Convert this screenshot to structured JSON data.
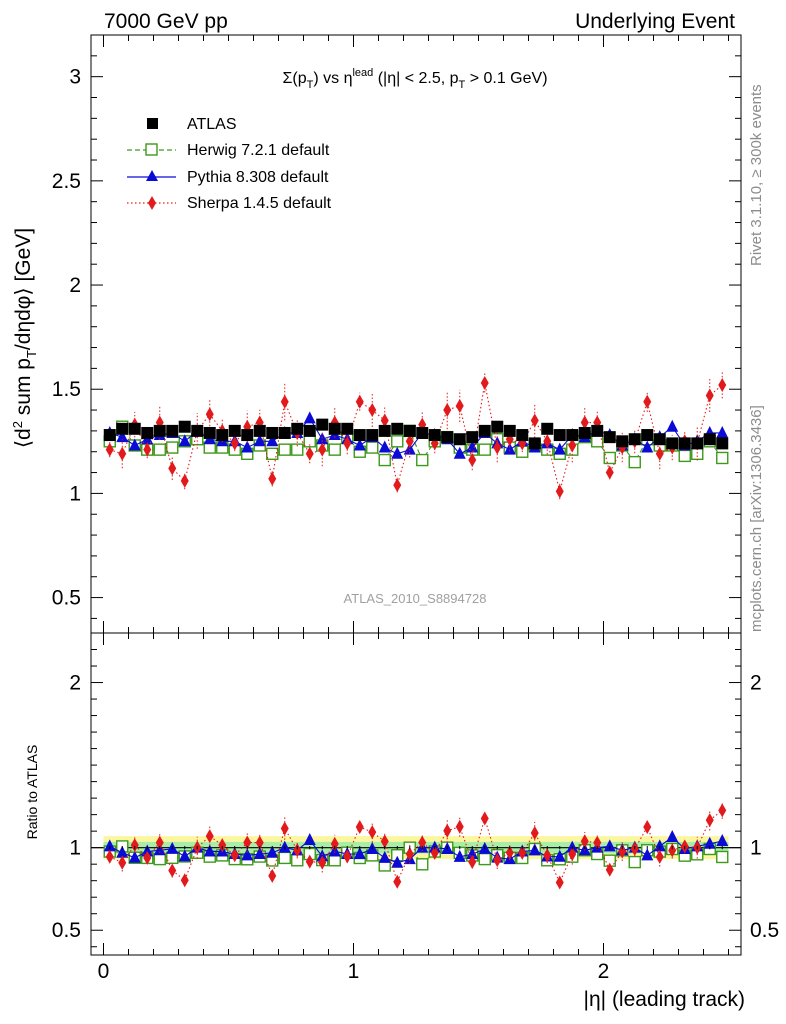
{
  "header": {
    "left": "7000 GeV pp",
    "right": "Underlying Event"
  },
  "side_labels": {
    "rivet": "Rivet 3.1.10, ≥ 300k events",
    "mcplots": "mcplots.cern.ch [arXiv:1306.3436]"
  },
  "watermark": "ATLAS_2010_S8894728",
  "chart_data": {
    "type": "scatter",
    "title_parts": {
      "main": "Σ(p",
      "main_sub": "T",
      "vs": ") vs η",
      "vs_sup": "lead",
      "cut1": " (|η| < 2.5, p",
      "cut_sub": "T",
      "cut2": " > 0.1 GeV)"
    },
    "ylabel_parts": {
      "a": "⟨d",
      "a_sup": "2",
      "b": " sum p",
      "b_sub": "T",
      "c": "/dηdφ⟩ [GeV]"
    },
    "xlabel": "|η| (leading track)",
    "ratio_ylabel": "Ratio to ATLAS",
    "xlim": [
      -0.05,
      2.55
    ],
    "ylim": [
      0.33,
      3.2
    ],
    "ratio_ylim": [
      0.35,
      2.3
    ],
    "x_ticks": [
      "0",
      "1",
      "2"
    ],
    "x_tick_values": [
      0,
      1,
      2
    ],
    "y_ticks": [
      "0.5",
      "1",
      "1.5",
      "2",
      "2.5",
      "3"
    ],
    "y_tick_values": [
      0.5,
      1,
      1.5,
      2,
      2.5,
      3
    ],
    "ratio_ticks": [
      "0.5",
      "1",
      "2"
    ],
    "ratio_tick_values": [
      0.5,
      1,
      2
    ],
    "legend": {
      "position": "top-left",
      "entries": [
        "ATLAS",
        "Herwig 7.2.1 default",
        "Pythia 8.308 default",
        "Sherpa 1.4.5 default"
      ]
    },
    "x": [
      0.025,
      0.075,
      0.125,
      0.175,
      0.225,
      0.275,
      0.325,
      0.375,
      0.425,
      0.475,
      0.525,
      0.575,
      0.625,
      0.675,
      0.725,
      0.775,
      0.825,
      0.875,
      0.925,
      0.975,
      1.025,
      1.075,
      1.125,
      1.175,
      1.225,
      1.275,
      1.325,
      1.375,
      1.425,
      1.475,
      1.525,
      1.575,
      1.625,
      1.675,
      1.725,
      1.775,
      1.825,
      1.875,
      1.925,
      1.975,
      2.025,
      2.075,
      2.125,
      2.175,
      2.225,
      2.275,
      2.325,
      2.375,
      2.425,
      2.475
    ],
    "series": [
      {
        "name": "ATLAS",
        "color": "#000000",
        "marker": "square",
        "values": [
          1.28,
          1.31,
          1.31,
          1.29,
          1.3,
          1.3,
          1.32,
          1.3,
          1.29,
          1.28,
          1.3,
          1.28,
          1.3,
          1.29,
          1.29,
          1.31,
          1.3,
          1.33,
          1.31,
          1.31,
          1.28,
          1.28,
          1.3,
          1.31,
          1.3,
          1.29,
          1.28,
          1.27,
          1.26,
          1.27,
          1.3,
          1.32,
          1.3,
          1.28,
          1.24,
          1.31,
          1.28,
          1.28,
          1.29,
          1.3,
          1.27,
          1.25,
          1.26,
          1.28,
          1.26,
          1.24,
          1.24,
          1.24,
          1.26,
          1.24
        ]
      },
      {
        "name": "Herwig 7.2.1 default",
        "color": "#3d9a1a",
        "marker": "open-square",
        "values": [
          1.25,
          1.32,
          1.23,
          1.21,
          1.21,
          1.22,
          1.25,
          1.26,
          1.22,
          1.22,
          1.21,
          1.19,
          1.23,
          1.19,
          1.21,
          1.21,
          1.25,
          1.23,
          1.21,
          1.27,
          1.2,
          1.22,
          1.16,
          1.25,
          1.3,
          1.16,
          1.25,
          1.27,
          1.22,
          1.21,
          1.21,
          1.26,
          1.22,
          1.2,
          1.23,
          1.21,
          1.19,
          1.21,
          1.27,
          1.25,
          1.17,
          1.23,
          1.15,
          1.26,
          1.23,
          1.23,
          1.18,
          1.19,
          1.25,
          1.17
        ]
      },
      {
        "name": "Pythia 8.308 default",
        "color": "#0b0bd6",
        "marker": "triangle",
        "values": [
          1.29,
          1.27,
          1.23,
          1.26,
          1.28,
          1.29,
          1.25,
          1.3,
          1.26,
          1.25,
          1.25,
          1.22,
          1.25,
          1.25,
          1.29,
          1.29,
          1.36,
          1.26,
          1.28,
          1.26,
          1.23,
          1.27,
          1.22,
          1.19,
          1.21,
          1.29,
          1.28,
          1.26,
          1.19,
          1.22,
          1.29,
          1.24,
          1.21,
          1.25,
          1.22,
          1.24,
          1.21,
          1.28,
          1.27,
          1.3,
          1.28,
          1.23,
          1.26,
          1.22,
          1.27,
          1.32,
          1.23,
          1.25,
          1.29,
          1.29
        ]
      },
      {
        "name": "Sherpa 1.4.5 default",
        "color": "#e31a1c",
        "marker": "diamond",
        "values": [
          1.21,
          1.19,
          1.33,
          1.21,
          1.34,
          1.12,
          1.06,
          1.3,
          1.38,
          1.3,
          1.24,
          1.32,
          1.34,
          1.07,
          1.44,
          1.29,
          1.19,
          1.21,
          1.34,
          1.24,
          1.44,
          1.4,
          1.35,
          1.04,
          1.25,
          1.33,
          1.24,
          1.4,
          1.42,
          1.16,
          1.53,
          1.22,
          1.26,
          1.24,
          1.35,
          1.25,
          1.01,
          1.23,
          1.34,
          1.34,
          1.1,
          1.22,
          1.25,
          1.44,
          1.19,
          1.22,
          1.25,
          1.24,
          1.47,
          1.52
        ]
      }
    ]
  }
}
